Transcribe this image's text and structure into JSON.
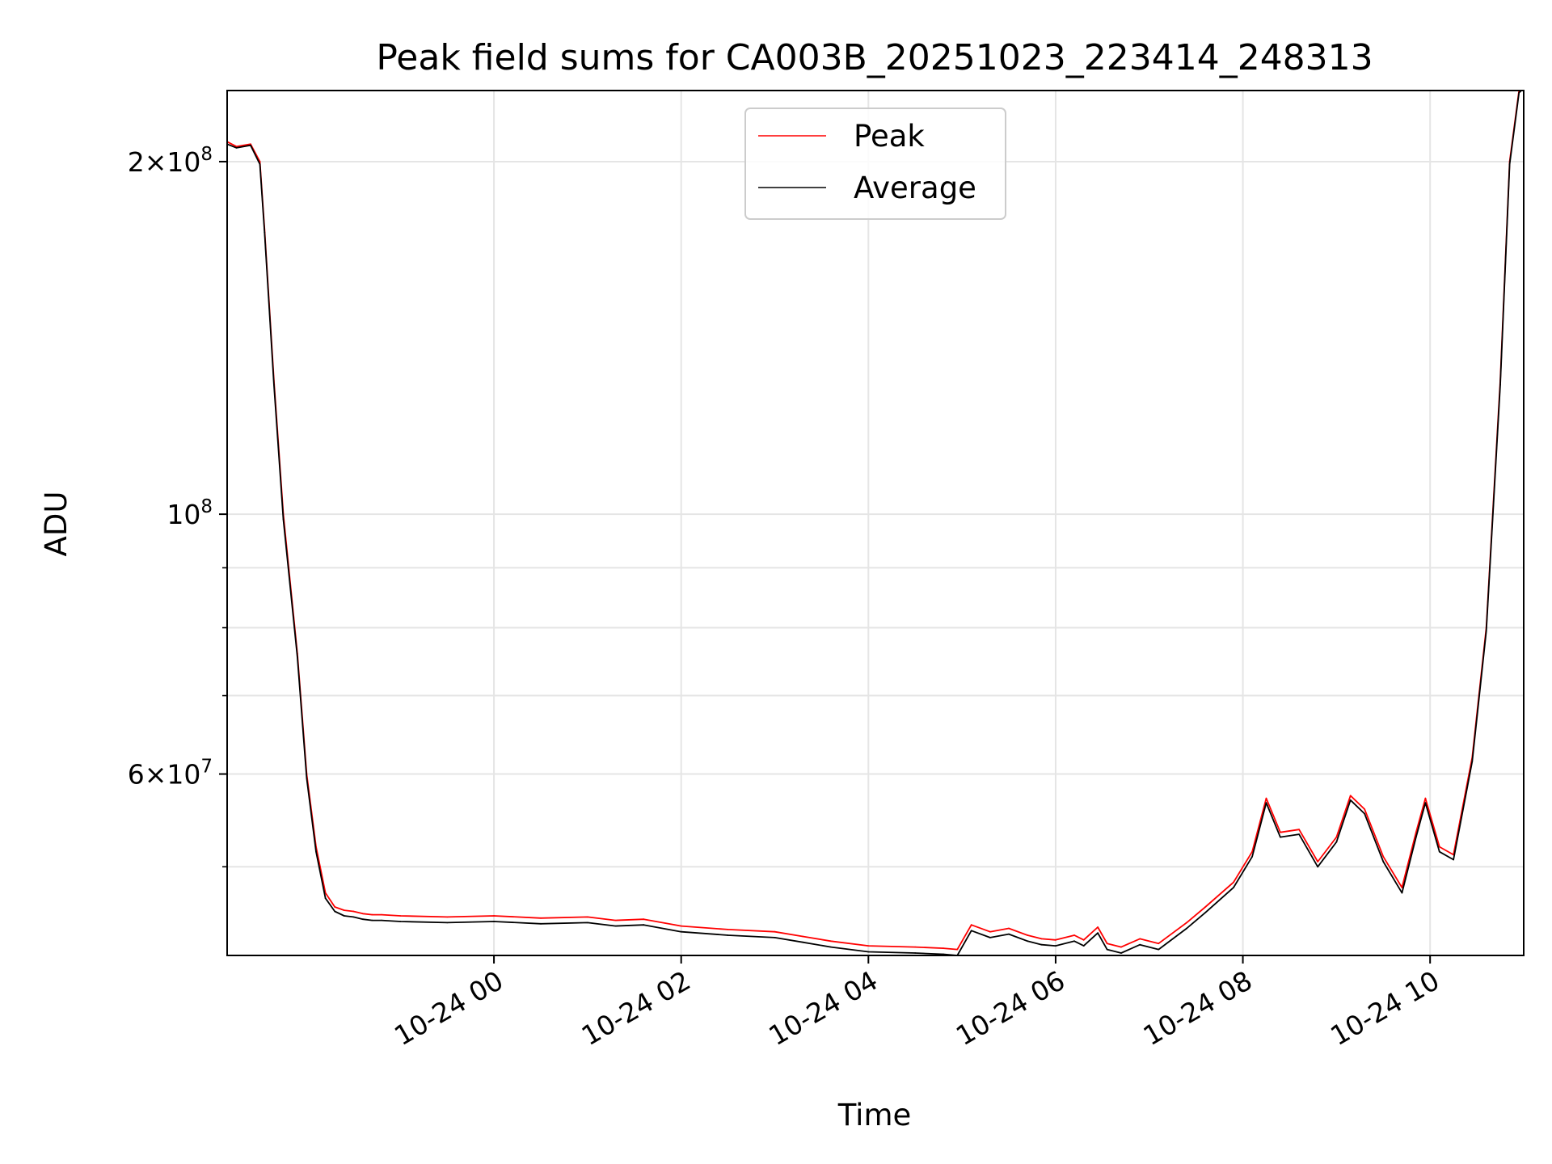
{
  "chart_data": {
    "type": "line",
    "title": "Peak field sums for CA003B_20251023_223414_248313",
    "xlabel": "Time",
    "ylabel": "ADU",
    "yscale": "log",
    "xlim": [
      -2.85,
      11.0
    ],
    "ylim": [
      42000000,
      230000000
    ],
    "grid": true,
    "legend_location": "top-center",
    "x_ticks": [
      {
        "value": 0,
        "label": "10-24 00"
      },
      {
        "value": 2,
        "label": "10-24 02"
      },
      {
        "value": 4,
        "label": "10-24 04"
      },
      {
        "value": 6,
        "label": "10-24 06"
      },
      {
        "value": 8,
        "label": "10-24 08"
      },
      {
        "value": 10,
        "label": "10-24 10"
      }
    ],
    "y_major_ticks": [
      {
        "value": 60000000,
        "base": "6",
        "exp": "7",
        "label": "6 × 10^7"
      },
      {
        "value": 100000000,
        "base": "",
        "exp": "8",
        "label": "10^8"
      },
      {
        "value": 200000000,
        "base": "2",
        "exp": "8",
        "label": "2 × 10^8"
      }
    ],
    "y_minor_ticks": [
      50000000,
      70000000,
      80000000,
      90000000
    ],
    "series": [
      {
        "name": "Peak",
        "color": "#ff0000",
        "x": [
          -2.85,
          -2.75,
          -2.6,
          -2.5,
          -2.45,
          -2.35,
          -2.25,
          -2.1,
          -2.0,
          -1.9,
          -1.8,
          -1.7,
          -1.6,
          -1.5,
          -1.4,
          -1.3,
          -1.2,
          -1.0,
          -0.5,
          0.0,
          0.5,
          1.0,
          1.3,
          1.6,
          2.0,
          2.5,
          3.0,
          3.3,
          3.6,
          4.0,
          4.5,
          4.8,
          4.95,
          5.1,
          5.3,
          5.5,
          5.7,
          5.85,
          6.0,
          6.2,
          6.3,
          6.45,
          6.55,
          6.7,
          6.9,
          7.1,
          7.4,
          7.6,
          7.9,
          8.1,
          8.25,
          8.4,
          8.6,
          8.8,
          9.0,
          9.15,
          9.3,
          9.5,
          9.7,
          9.85,
          9.95,
          10.1,
          10.25,
          10.45,
          10.6,
          10.75,
          10.85,
          10.95,
          11.0
        ],
        "y": [
          208000000,
          206000000,
          207000000,
          200000000,
          175000000,
          130000000,
          100000000,
          76000000,
          60000000,
          52000000,
          47500000,
          46200000,
          45900000,
          45800000,
          45600000,
          45500000,
          45500000,
          45400000,
          45300000,
          45400000,
          45200000,
          45300000,
          45000000,
          45100000,
          44500000,
          44200000,
          44000000,
          43600000,
          43200000,
          42800000,
          42700000,
          42600000,
          42500000,
          44600000,
          44000000,
          44300000,
          43700000,
          43400000,
          43300000,
          43700000,
          43300000,
          44400000,
          43000000,
          42700000,
          43400000,
          43000000,
          44800000,
          46200000,
          48500000,
          51500000,
          57200000,
          53500000,
          53800000,
          50500000,
          53000000,
          57500000,
          56000000,
          51000000,
          48000000,
          53500000,
          57200000,
          52000000,
          51200000,
          62000000,
          80000000,
          130000000,
          200000000,
          230000000,
          232000000
        ]
      },
      {
        "name": "Average",
        "color": "#000000",
        "x": [
          -2.85,
          -2.75,
          -2.6,
          -2.5,
          -2.45,
          -2.35,
          -2.25,
          -2.1,
          -2.0,
          -1.9,
          -1.8,
          -1.7,
          -1.6,
          -1.5,
          -1.4,
          -1.3,
          -1.2,
          -1.0,
          -0.5,
          0.0,
          0.5,
          1.0,
          1.3,
          1.6,
          2.0,
          2.5,
          3.0,
          3.3,
          3.6,
          4.0,
          4.5,
          4.8,
          4.95,
          5.1,
          5.3,
          5.5,
          5.7,
          5.85,
          6.0,
          6.2,
          6.3,
          6.45,
          6.55,
          6.7,
          6.9,
          7.1,
          7.4,
          7.6,
          7.9,
          8.1,
          8.25,
          8.4,
          8.6,
          8.8,
          9.0,
          9.15,
          9.3,
          9.5,
          9.7,
          9.85,
          9.95,
          10.1,
          10.25,
          10.45,
          10.6,
          10.75,
          10.85,
          10.95,
          11.0
        ],
        "y": [
          207000000,
          205500000,
          206500000,
          199000000,
          174000000,
          129000000,
          99000000,
          75500000,
          59500000,
          51500000,
          47000000,
          45800000,
          45400000,
          45300000,
          45100000,
          45000000,
          45000000,
          44900000,
          44800000,
          44900000,
          44700000,
          44800000,
          44500000,
          44600000,
          44000000,
          43700000,
          43500000,
          43100000,
          42700000,
          42300000,
          42200000,
          42100000,
          42000000,
          44100000,
          43500000,
          43800000,
          43200000,
          42900000,
          42800000,
          43200000,
          42800000,
          43900000,
          42500000,
          42200000,
          42900000,
          42500000,
          44300000,
          45700000,
          48000000,
          51000000,
          56700000,
          53000000,
          53300000,
          50000000,
          52500000,
          57000000,
          55500000,
          50500000,
          47500000,
          53000000,
          56700000,
          51500000,
          50700000,
          61500000,
          79500000,
          129000000,
          199000000,
          229000000,
          231000000
        ]
      }
    ]
  }
}
